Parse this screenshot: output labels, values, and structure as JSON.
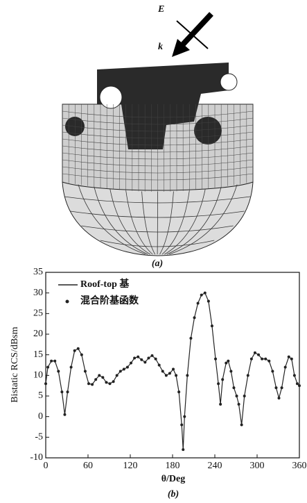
{
  "panel_a": {
    "e_label": "E",
    "k_label": "k",
    "caption": "(a)"
  },
  "chart_data": {
    "type": "line",
    "y_label": "Bistatic RCS/dBsm",
    "x_label": "θ/Deg",
    "caption": "(b)",
    "xlim": [
      0,
      360
    ],
    "xticks": [
      0,
      60,
      120,
      180,
      240,
      300,
      360
    ],
    "ylim": [
      -10,
      35
    ],
    "yticks": [
      -10,
      -5,
      0,
      5,
      10,
      15,
      20,
      25,
      30,
      35
    ],
    "x": [
      0,
      3,
      8,
      13,
      18,
      23,
      27,
      31,
      36,
      41,
      46,
      51,
      56,
      61,
      66,
      71,
      76,
      81,
      86,
      91,
      96,
      101,
      106,
      111,
      116,
      121,
      126,
      131,
      136,
      141,
      146,
      151,
      156,
      161,
      166,
      171,
      176,
      181,
      185,
      189,
      193,
      195,
      197,
      201,
      206,
      211,
      216,
      221,
      226,
      231,
      236,
      241,
      245,
      248,
      251,
      256,
      259,
      263,
      267,
      271,
      274,
      278,
      282,
      287,
      292,
      297,
      302,
      307,
      312,
      317,
      322,
      327,
      331,
      335,
      340,
      345,
      349,
      353,
      357,
      360
    ],
    "series": [
      {
        "name": "Roof-top 基",
        "color": "#222222",
        "style": "line",
        "values": [
          8,
          12,
          13.5,
          13.5,
          11,
          6,
          0.5,
          6,
          12,
          16,
          16.5,
          15,
          11,
          8,
          7.8,
          9,
          10,
          9.5,
          8.3,
          8,
          8.5,
          10,
          11,
          11.5,
          12,
          13,
          14.2,
          14.5,
          13.8,
          13.2,
          14.2,
          14.8,
          14,
          12.5,
          11,
          10,
          10.5,
          11.5,
          10,
          6,
          -2,
          -8,
          0,
          10,
          19,
          24,
          27.5,
          29.5,
          30,
          28,
          22,
          14,
          8,
          3,
          9,
          13,
          13.5,
          11,
          7,
          5,
          3,
          -2,
          5,
          10,
          14,
          15.5,
          15,
          14,
          14,
          13.5,
          11,
          7,
          4.5,
          7,
          12,
          14.5,
          14,
          10,
          8,
          7.5
        ]
      },
      {
        "name": "混合阶基函数",
        "color": "#222222",
        "style": "dots",
        "values": [
          8,
          12,
          13.5,
          13.5,
          11,
          6,
          0.5,
          6,
          12,
          16,
          16.5,
          15,
          11,
          8,
          7.8,
          9,
          10,
          9.5,
          8.3,
          8,
          8.5,
          10,
          11,
          11.5,
          12,
          13,
          14.2,
          14.5,
          13.8,
          13.2,
          14.2,
          14.8,
          14,
          12.5,
          11,
          10,
          10.5,
          11.5,
          10,
          6,
          -2,
          -8,
          0,
          10,
          19,
          24,
          27.5,
          29.5,
          30,
          28,
          22,
          14,
          8,
          3,
          9,
          13,
          13.5,
          11,
          7,
          5,
          3,
          -2,
          5,
          10,
          14,
          15.5,
          15,
          14,
          14,
          13.5,
          11,
          7,
          4.5,
          7,
          12,
          14.5,
          14,
          10,
          8,
          7.5
        ]
      }
    ]
  }
}
